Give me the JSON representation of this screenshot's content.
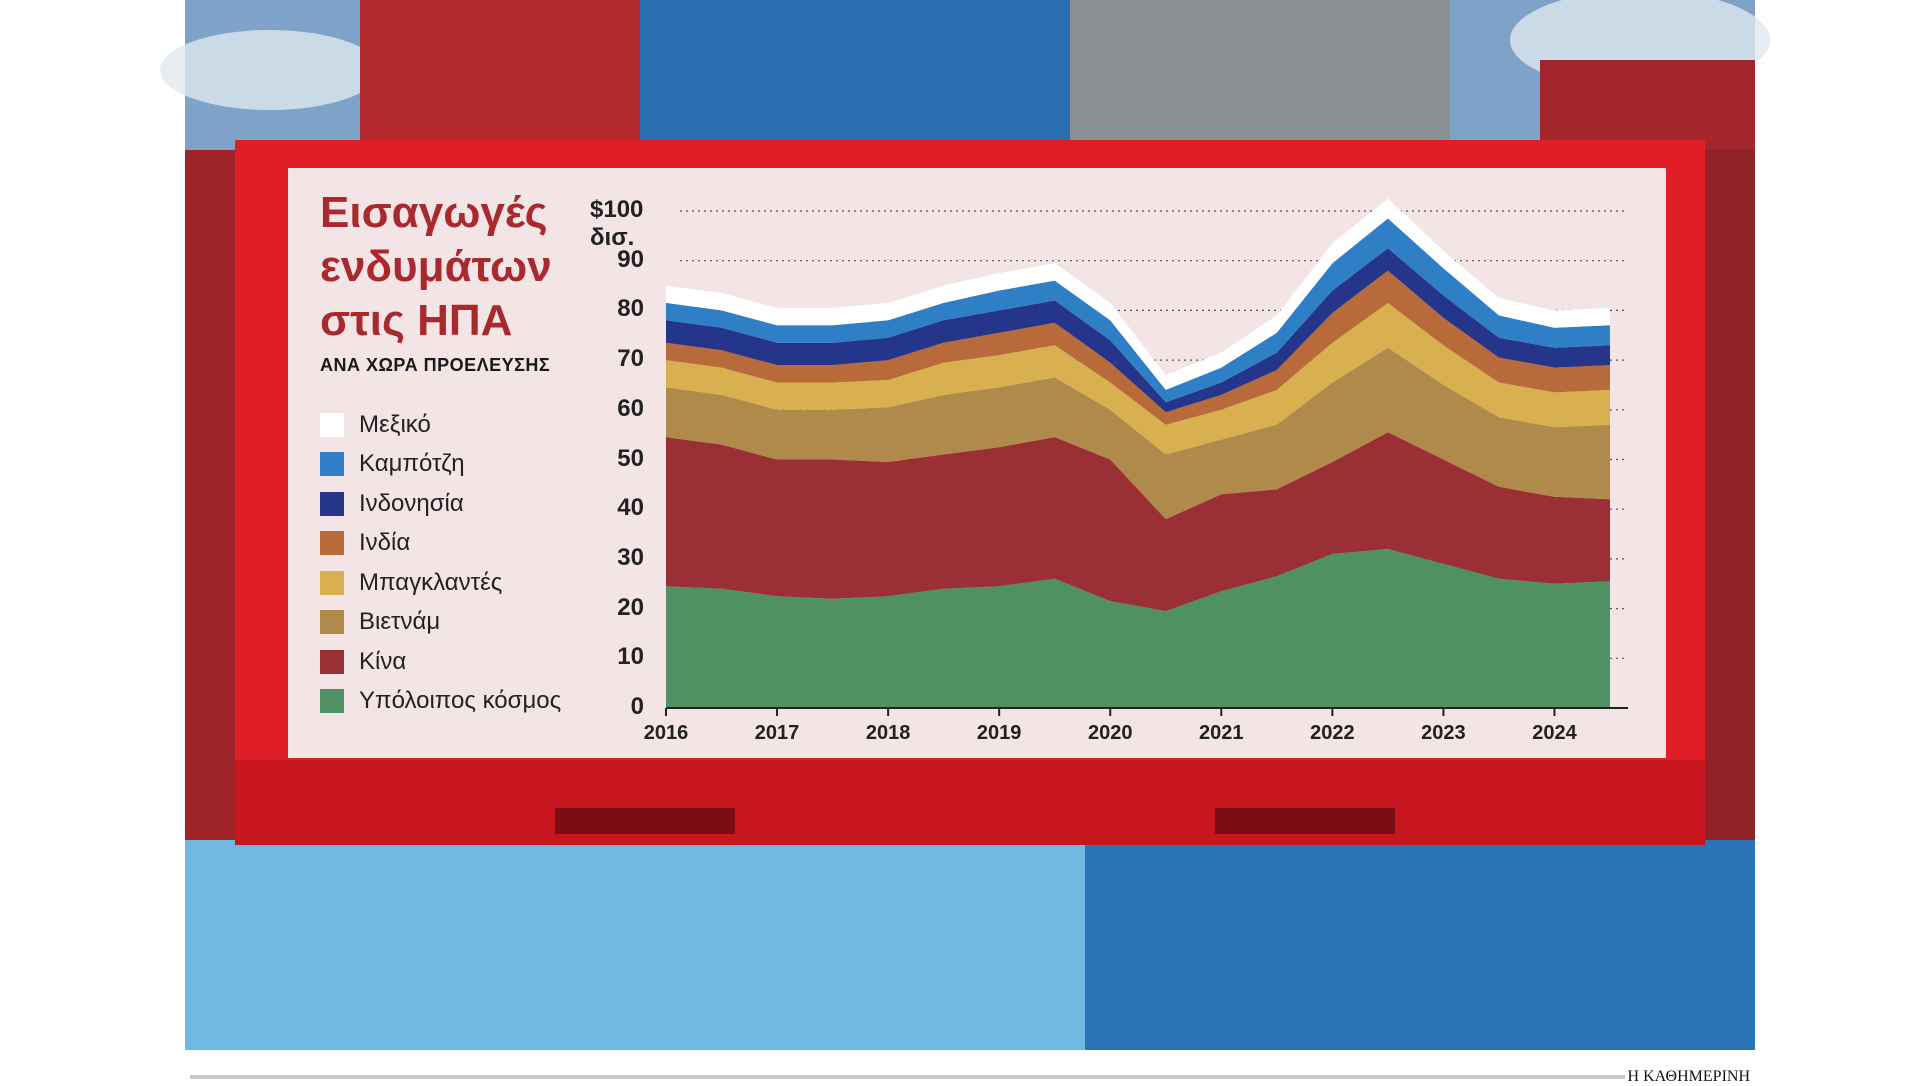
{
  "header": {
    "title": "Εισαγωγές ενδυμάτων στις ΗΠΑ",
    "subtitle": "ΑΝΑ ΧΩΡΑ ΠΡΟΕΛΕΥΣΗΣ"
  },
  "footer": {
    "credit": "Η ΚΑΘΗΜΕΡΙΝΗ"
  },
  "chart_data": {
    "type": "area",
    "stacked": true,
    "ylim": [
      0,
      100
    ],
    "y_unit_label": "$100 δισ.",
    "y_ticks": [
      "$100 δισ.",
      "90",
      "80",
      "70",
      "60",
      "50",
      "40",
      "30",
      "20",
      "10",
      "0"
    ],
    "x_tick_labels": [
      "2016",
      "2017",
      "2018",
      "2019",
      "2020",
      "2021",
      "2022",
      "2023",
      "2024"
    ],
    "x": [
      2016.0,
      2016.5,
      2017.0,
      2017.5,
      2018.0,
      2018.5,
      2019.0,
      2019.5,
      2020.0,
      2020.5,
      2021.0,
      2021.5,
      2022.0,
      2022.5,
      2023.0,
      2023.5,
      2024.0,
      2024.5
    ],
    "grid": "horizontal dotted",
    "legend_position": "left",
    "series": [
      {
        "name": "Υπόλοιπος κόσμος",
        "color": "#4f9163",
        "values": [
          24.5,
          24,
          22.5,
          22,
          22.5,
          24,
          24.5,
          26,
          21.5,
          19.5,
          23.5,
          26.5,
          31,
          32,
          29,
          26,
          25,
          25.5
        ]
      },
      {
        "name": "Κίνα",
        "color": "#9a2f35",
        "values": [
          30,
          29,
          27.5,
          28,
          27,
          27,
          28,
          28.5,
          28.5,
          18.5,
          19.5,
          17.5,
          18.5,
          23.5,
          21,
          18.5,
          17.5,
          16.5
        ]
      },
      {
        "name": "Βιετνάμ",
        "color": "#b08a4a",
        "values": [
          10,
          10,
          10,
          10,
          11,
          12,
          12,
          12,
          10,
          13,
          11,
          13,
          16,
          17,
          15,
          14,
          14,
          15
        ]
      },
      {
        "name": "Μπαγκλαντές",
        "color": "#d9b050",
        "values": [
          5.5,
          5.5,
          5.5,
          5.5,
          5.5,
          6.5,
          6.5,
          6.5,
          5.5,
          6,
          6,
          7,
          8,
          9,
          8,
          7,
          7,
          7
        ]
      },
      {
        "name": "Ινδία",
        "color": "#b86a3a",
        "values": [
          3.5,
          3.5,
          3.5,
          3.5,
          4,
          4,
          4.5,
          4.5,
          4,
          2.5,
          3,
          4,
          6,
          6.5,
          5.5,
          5,
          5,
          5
        ]
      },
      {
        "name": "Ινδονησία",
        "color": "#25368a",
        "values": [
          4.5,
          4.5,
          4.5,
          4.5,
          4.5,
          4.5,
          4.5,
          4.5,
          4.5,
          2,
          2.5,
          3.5,
          4.5,
          4.5,
          4.5,
          4,
          4,
          4
        ]
      },
      {
        "name": "Καμπότζη",
        "color": "#2f7fc6",
        "values": [
          3.5,
          3.5,
          3.5,
          3.5,
          3.5,
          3.5,
          4,
          4,
          4,
          2.5,
          3,
          4,
          5.5,
          6,
          5.5,
          4.5,
          4,
          4
        ]
      },
      {
        "name": "Μεξικό",
        "color": "#ffffff",
        "values": [
          3.5,
          3.5,
          3.5,
          3.5,
          3.5,
          3.5,
          3.5,
          3.5,
          3.5,
          3,
          3,
          3.5,
          4,
          4,
          3.5,
          3.5,
          3.5,
          3.5
        ]
      }
    ]
  }
}
